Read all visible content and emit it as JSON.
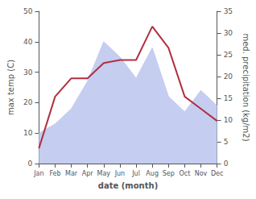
{
  "chart_data": {
    "type": "line",
    "categories": [
      "Jan",
      "Feb",
      "Mar",
      "Apr",
      "May",
      "Jun",
      "Jul",
      "Aug",
      "Sep",
      "Oct",
      "Nov",
      "Dec"
    ],
    "series": [
      {
        "type": "area",
        "color": "#c5cdf0",
        "values": [
          10,
          13,
          18,
          27,
          40,
          35,
          28,
          38,
          22,
          17,
          24,
          19
        ]
      },
      {
        "type": "line",
        "color": "#b03040",
        "values": [
          5,
          22,
          28,
          28,
          33,
          34,
          34,
          45,
          38,
          22,
          18,
          14
        ]
      }
    ],
    "xlabel": "date (month)",
    "ylabel": "max temp (C)",
    "y2label": "med. precipitation (kg/m2)",
    "ylim": [
      0,
      50
    ],
    "yticks": [
      0,
      10,
      20,
      30,
      40,
      50
    ],
    "y2lim": [
      0,
      35
    ],
    "y2ticks": [
      0,
      5,
      10,
      15,
      20,
      25,
      30,
      35
    ],
    "grid": false
  }
}
